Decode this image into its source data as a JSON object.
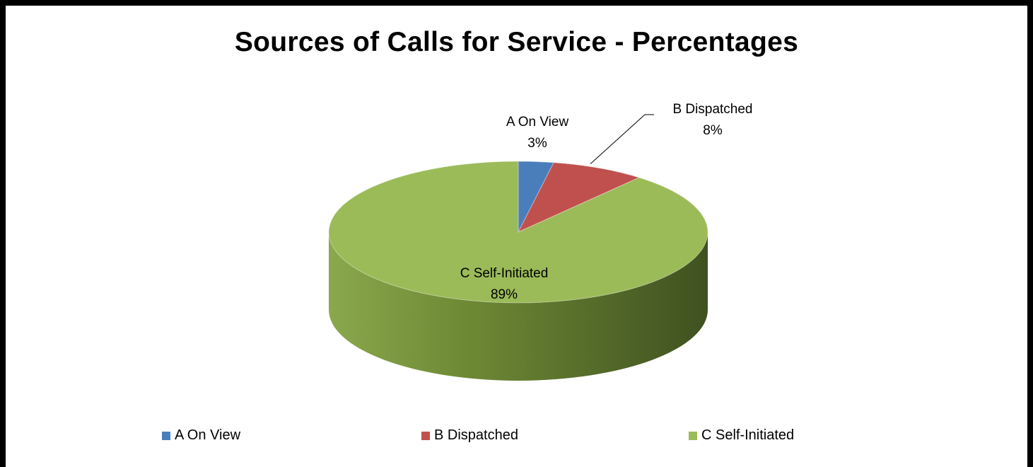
{
  "chart_data": {
    "type": "pie",
    "style": "3d",
    "title": "Sources of Calls for Service - Percentages",
    "categories": [
      "A On View",
      "B Dispatched",
      "C Self-Initiated"
    ],
    "values": [
      3,
      8,
      89
    ],
    "value_labels": [
      "3%",
      "8%",
      "89%"
    ],
    "colors": [
      "#4a7ebb",
      "#c0504d",
      "#9bbb59"
    ],
    "legend_position": "bottom"
  }
}
